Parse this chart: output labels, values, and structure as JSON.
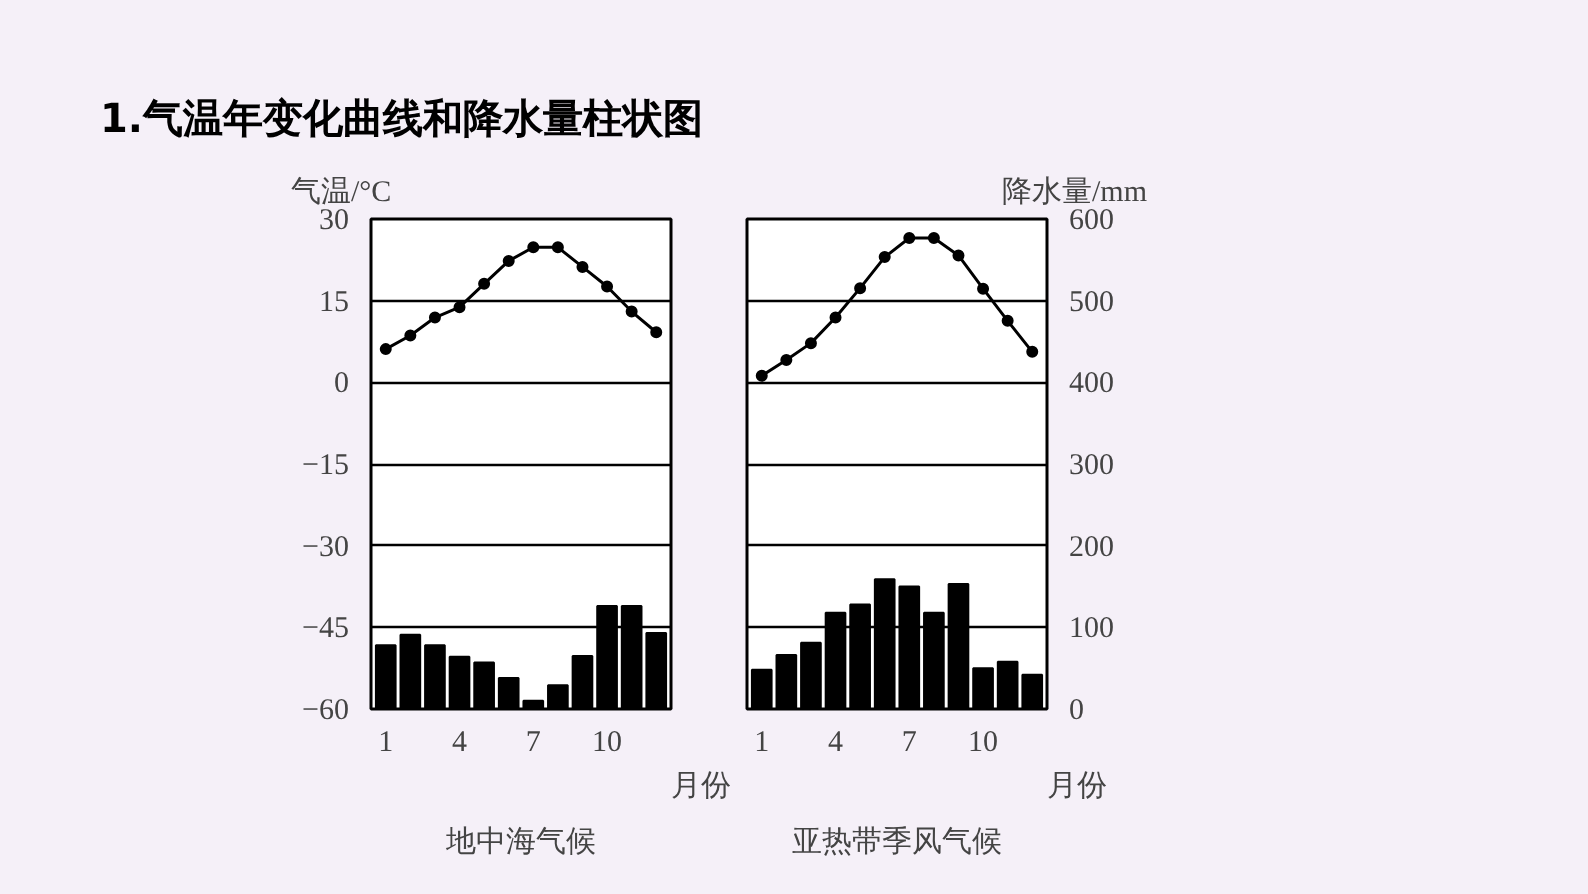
{
  "chart_data": [
    {
      "type": "line",
      "title": "地中海气候",
      "annotations": [
        "1.气温年变化曲线和降水量柱状图"
      ],
      "xlabel": "月份",
      "ylabel": "气温/°C",
      "x": [
        1,
        2,
        3,
        4,
        5,
        6,
        7,
        8,
        9,
        10,
        11,
        12
      ],
      "xlim": [
        0.4,
        12.6
      ],
      "xticks": [
        1,
        4,
        7,
        10
      ],
      "ylim": [
        -60,
        30
      ],
      "yticks": [
        -60,
        -45,
        -30,
        -15,
        0,
        15,
        30
      ],
      "y2lim": [
        0,
        600
      ],
      "grid": "y",
      "marker": "circle",
      "series": [
        {
          "type": "bar",
          "axis": "y2",
          "color": "#000000",
          "values": [
            78,
            91,
            78,
            64,
            57,
            38,
            10,
            29,
            65,
            126,
            126,
            93
          ]
        },
        {
          "color": "#000000",
          "values": [
            6.1,
            8.6,
            11.9,
            13.8,
            18.1,
            22.3,
            24.8,
            24.8,
            21.2,
            17.6,
            13,
            9.2
          ]
        }
      ]
    },
    {
      "type": "line",
      "title": "亚热带季风气候",
      "xlabel": "月份",
      "y2label": "降水量/mm",
      "x": [
        1,
        2,
        3,
        4,
        5,
        6,
        7,
        8,
        9,
        10,
        11,
        12
      ],
      "xlim": [
        0.4,
        12.6
      ],
      "xticks": [
        1,
        4,
        7,
        10
      ],
      "ylim": [
        -60,
        30
      ],
      "y2lim": [
        0,
        600
      ],
      "y2ticks": [
        0,
        100,
        200,
        300,
        400,
        500,
        600
      ],
      "grid": "y",
      "marker": "circle",
      "series": [
        {
          "type": "bar",
          "axis": "y2",
          "color": "#000000",
          "values": [
            48,
            66,
            81,
            118,
            128,
            159,
            150,
            118,
            153,
            50,
            58,
            42
          ]
        },
        {
          "color": "#000000",
          "values": [
            1.2,
            4.1,
            7.2,
            11.9,
            17.3,
            23,
            26.5,
            26.5,
            23.3,
            17.2,
            11.3,
            5.6
          ]
        }
      ]
    }
  ]
}
